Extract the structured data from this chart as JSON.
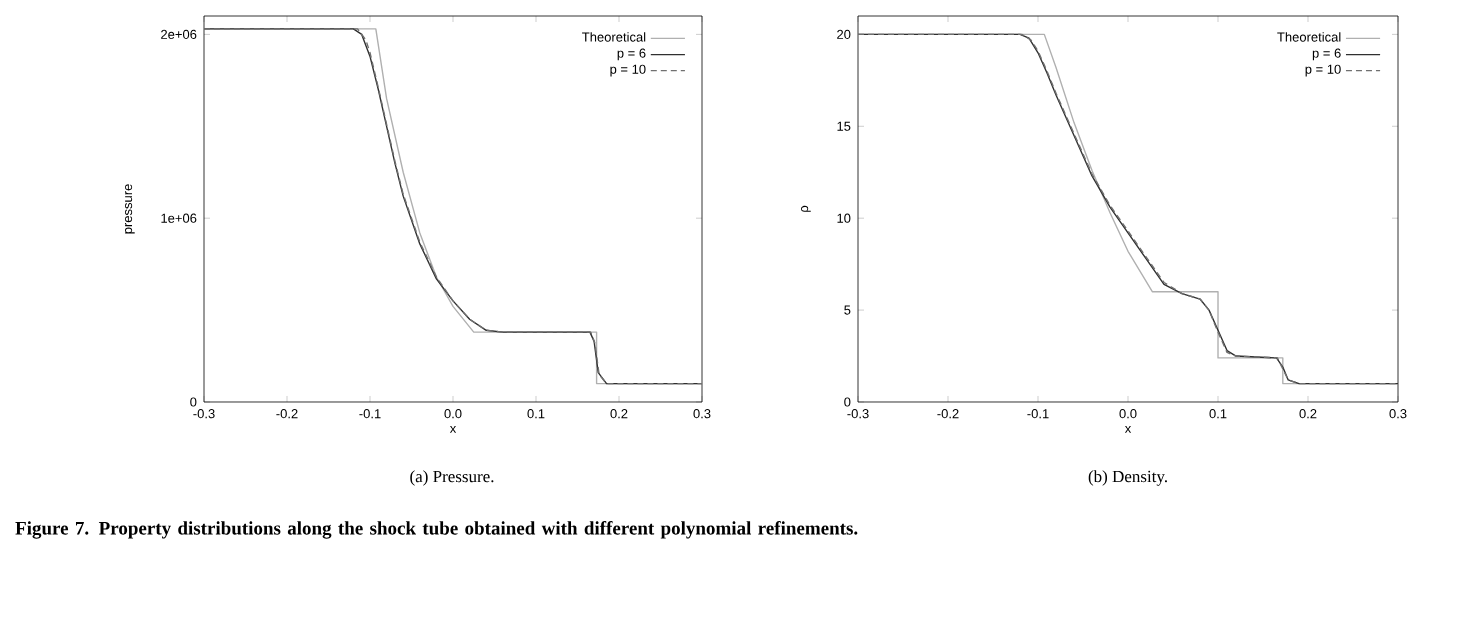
{
  "chart_data": [
    {
      "type": "line",
      "xlabel": "x",
      "ylabel": "pressure",
      "xlim": [
        -0.3,
        0.3
      ],
      "ylim": [
        0,
        2100000
      ],
      "xticks": [
        -0.3,
        -0.2,
        -0.1,
        {
          "value": 0,
          "label": "0.0"
        },
        0.1,
        0.2,
        0.3
      ],
      "yticks": [
        0,
        {
          "value": 1000000,
          "label": "1e+06"
        },
        {
          "value": 2000000,
          "label": "2e+06"
        }
      ],
      "legend": "top right",
      "marker": "none",
      "series": [
        {
          "name": "Theoretical",
          "color": "#b0b0b0",
          "line_style": "solid",
          "x": [
            -0.3,
            -0.093,
            -0.08,
            -0.06,
            -0.04,
            -0.02,
            0.0,
            0.025,
            0.173,
            0.173,
            0.3
          ],
          "values": [
            2030000,
            2030000,
            1650000,
            1250000,
            920000,
            680000,
            520000,
            380000,
            380000,
            100000,
            100000
          ]
        },
        {
          "name": "p = 6",
          "color": "#303030",
          "line_style": "solid",
          "x": [
            -0.3,
            -0.12,
            -0.11,
            -0.1,
            -0.09,
            -0.08,
            -0.07,
            -0.06,
            -0.04,
            -0.02,
            0.0,
            0.02,
            0.04,
            0.06,
            0.165,
            0.17,
            0.175,
            0.185,
            0.3
          ],
          "values": [
            2030000,
            2030000,
            2000000,
            1880000,
            1700000,
            1500000,
            1300000,
            1120000,
            860000,
            670000,
            550000,
            450000,
            390000,
            380000,
            380000,
            330000,
            160000,
            100000,
            100000
          ]
        },
        {
          "name": "p = 10",
          "color": "#707070",
          "line_style": "dashed",
          "x": [
            -0.3,
            -0.115,
            -0.105,
            -0.1,
            -0.09,
            -0.08,
            -0.07,
            -0.06,
            -0.04,
            -0.02,
            0.0,
            0.02,
            0.04,
            0.06,
            0.166,
            0.171,
            0.176,
            0.185,
            0.3
          ],
          "values": [
            2030000,
            2030000,
            1970000,
            1900000,
            1710000,
            1510000,
            1310000,
            1130000,
            870000,
            680000,
            550000,
            450000,
            390000,
            380000,
            380000,
            320000,
            150000,
            100000,
            100000
          ]
        }
      ],
      "annotations": [
        "(a) Pressure."
      ]
    },
    {
      "type": "line",
      "xlabel": "x",
      "ylabel": "ρ",
      "xlim": [
        -0.3,
        0.3
      ],
      "ylim": [
        0,
        21
      ],
      "xticks": [
        -0.3,
        -0.2,
        -0.1,
        {
          "value": 0,
          "label": "0.0"
        },
        0.1,
        0.2,
        0.3
      ],
      "yticks": [
        0,
        5,
        10,
        15,
        20
      ],
      "legend": "top right",
      "marker": "none",
      "series": [
        {
          "name": "Theoretical",
          "color": "#b0b0b0",
          "line_style": "solid",
          "x": [
            -0.3,
            -0.093,
            -0.08,
            -0.06,
            -0.04,
            -0.02,
            0.0,
            0.027,
            0.1,
            0.1,
            0.172,
            0.172,
            0.3
          ],
          "values": [
            20,
            20,
            18.2,
            15.2,
            12.6,
            10.3,
            8.2,
            6.0,
            6.0,
            2.4,
            2.4,
            1.0,
            1.0
          ]
        },
        {
          "name": "p = 6",
          "color": "#303030",
          "line_style": "solid",
          "x": [
            -0.3,
            -0.12,
            -0.11,
            -0.1,
            -0.09,
            -0.08,
            -0.07,
            -0.06,
            -0.04,
            -0.02,
            0.0,
            0.02,
            0.04,
            0.06,
            0.08,
            0.09,
            0.1,
            0.11,
            0.12,
            0.165,
            0.172,
            0.178,
            0.19,
            0.3
          ],
          "values": [
            20,
            20,
            19.8,
            19.0,
            17.9,
            16.7,
            15.6,
            14.5,
            12.3,
            10.6,
            9.2,
            7.8,
            6.4,
            5.9,
            5.6,
            5.0,
            3.9,
            2.8,
            2.5,
            2.4,
            1.9,
            1.2,
            1.0,
            1.0
          ]
        },
        {
          "name": "p = 10",
          "color": "#707070",
          "line_style": "dashed",
          "x": [
            -0.3,
            -0.118,
            -0.108,
            -0.1,
            -0.09,
            -0.08,
            -0.07,
            -0.06,
            -0.04,
            -0.02,
            0.0,
            0.02,
            0.04,
            0.06,
            0.08,
            0.09,
            0.1,
            0.11,
            0.12,
            0.166,
            0.172,
            0.178,
            0.19,
            0.3
          ],
          "values": [
            20,
            20,
            19.7,
            19.1,
            18.0,
            16.8,
            15.7,
            14.6,
            12.4,
            10.7,
            9.3,
            7.9,
            6.5,
            5.9,
            5.6,
            5.0,
            3.8,
            2.7,
            2.5,
            2.4,
            1.8,
            1.2,
            1.0,
            1.0
          ]
        }
      ],
      "annotations": [
        "(b) Density.",
        "Figure 7.  Property distributions along the shock tube obtained with different polynomial refinements."
      ]
    }
  ]
}
